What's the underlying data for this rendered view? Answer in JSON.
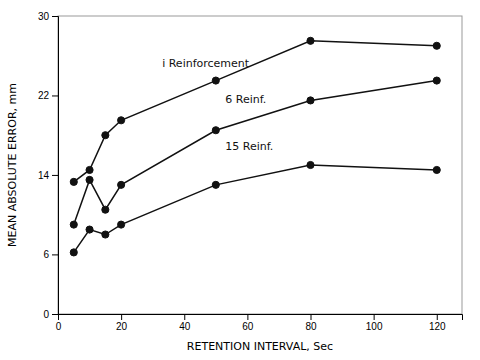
{
  "chart_data": {
    "type": "line",
    "xlabel": "RETENTION INTERVAL, Sec",
    "ylabel": "MEAN ABSOLUTE ERROR, mm",
    "x": [
      5,
      10,
      15,
      20,
      50,
      80,
      120
    ],
    "series": [
      {
        "color": "#111111",
        "marker": "circle",
        "values": [
          13.3,
          14.5,
          18.0,
          19.5,
          23.5,
          27.5,
          27.0
        ]
      },
      {
        "color": "#111111",
        "marker": "circle",
        "values": [
          9.0,
          13.5,
          10.5,
          13.0,
          18.5,
          21.5,
          23.5
        ]
      },
      {
        "color": "#111111",
        "marker": "circle",
        "values": [
          6.2,
          8.5,
          8.0,
          9.0,
          13.0,
          15.0,
          14.5
        ]
      }
    ],
    "annotations": [
      {
        "text": "i Reinforcement",
        "x": 33,
        "y": 25.2
      },
      {
        "text": "6 Reinf.",
        "x": 53,
        "y": 21.5
      },
      {
        "text": "15 Reinf.",
        "x": 53,
        "y": 16.8
      }
    ],
    "xlim": [
      0,
      128
    ],
    "ylim": [
      0,
      30
    ],
    "xticks": [
      0,
      20,
      40,
      60,
      80,
      100,
      120
    ],
    "yticks": [
      0,
      6,
      14,
      22,
      30
    ],
    "grid": false
  }
}
